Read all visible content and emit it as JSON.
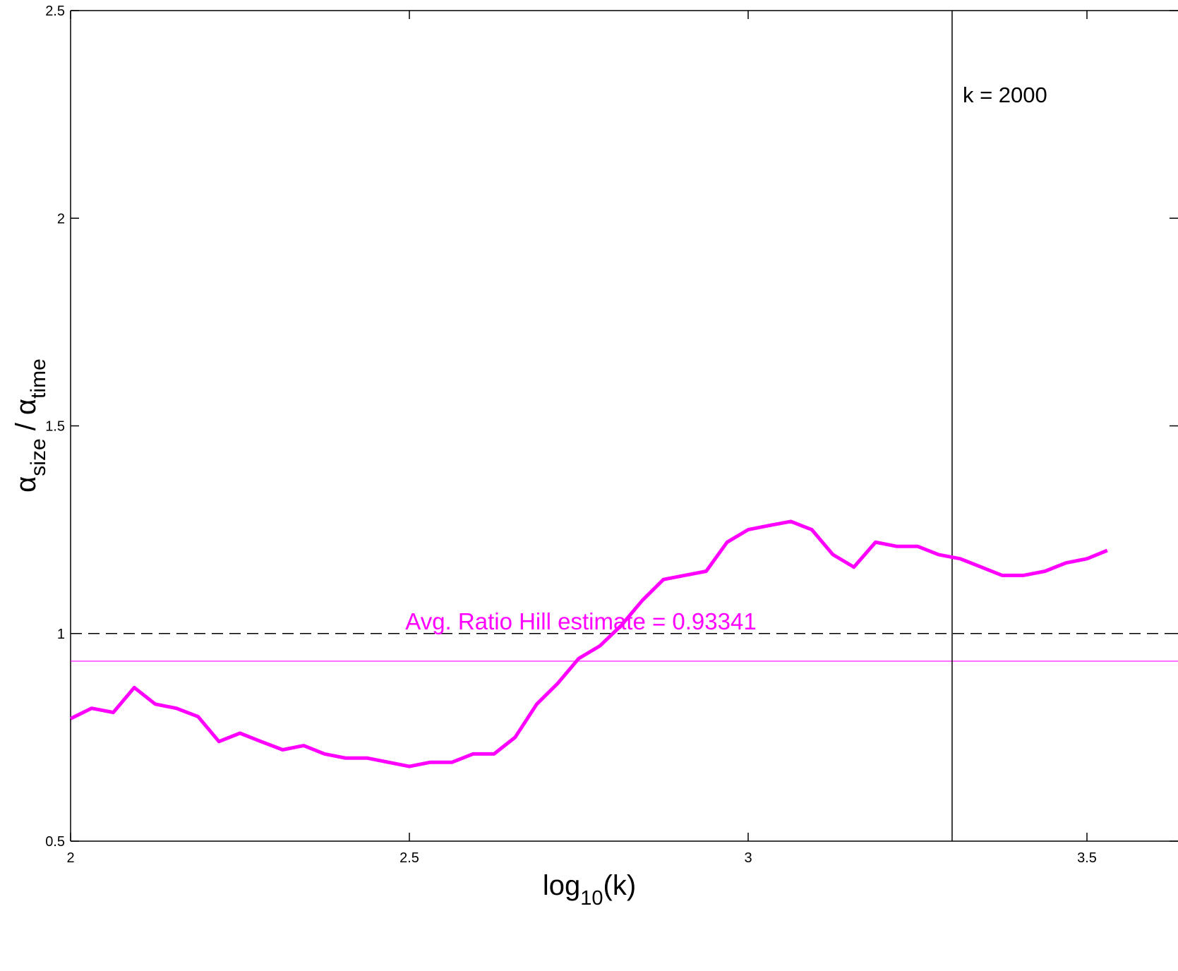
{
  "chart_data": {
    "type": "line",
    "xlabel_main": "log",
    "xlabel_sub": "10",
    "xlabel_tail": "(k)",
    "ylabel_alpha_1": "α",
    "ylabel_sub_1": "size",
    "ylabel_sep": " / ",
    "ylabel_alpha_2": "α",
    "ylabel_sub_2": "time",
    "xlim": [
      2,
      3.53
    ],
    "ylim": [
      0.5,
      2.5
    ],
    "x_ticks": [
      "2",
      "2.5",
      "3",
      "3.5"
    ],
    "y_ticks": [
      "0.5",
      "1",
      "1.5",
      "2",
      "2.5"
    ],
    "grid": false,
    "series": [
      {
        "color": "#ff00ff",
        "x": [
          2.0,
          2.031,
          2.063,
          2.094,
          2.125,
          2.156,
          2.188,
          2.219,
          2.25,
          2.281,
          2.313,
          2.344,
          2.375,
          2.406,
          2.438,
          2.469,
          2.5,
          2.531,
          2.563,
          2.594,
          2.625,
          2.656,
          2.688,
          2.719,
          2.75,
          2.781,
          2.813,
          2.844,
          2.875,
          2.906,
          2.938,
          2.969,
          3.0,
          3.031,
          3.063,
          3.094,
          3.125,
          3.156,
          3.188,
          3.219,
          3.25,
          3.281,
          3.313,
          3.344,
          3.375,
          3.406,
          3.438,
          3.469,
          3.5,
          3.53
        ],
        "y": [
          0.795,
          0.82,
          0.81,
          0.87,
          0.83,
          0.82,
          0.8,
          0.74,
          0.76,
          0.74,
          0.72,
          0.73,
          0.71,
          0.7,
          0.7,
          0.69,
          0.68,
          0.69,
          0.69,
          0.71,
          0.71,
          0.75,
          0.83,
          0.88,
          0.94,
          0.97,
          1.02,
          1.08,
          1.13,
          1.14,
          1.15,
          1.22,
          1.25,
          1.26,
          1.27,
          1.25,
          1.19,
          1.16,
          1.22,
          1.21,
          1.21,
          1.19,
          1.18,
          1.16,
          1.14,
          1.14,
          1.15,
          1.17,
          1.18,
          1.2
        ]
      }
    ],
    "reference_lines": {
      "dashed_y": 1,
      "hill_estimate_y": 0.93341,
      "vertical_x": 3.301,
      "hill_color": "#ff00ff"
    },
    "annotations": {
      "k_marker": "k = 2000",
      "hill_estimate": "Avg. Ratio Hill estimate = 0.93341"
    }
  }
}
